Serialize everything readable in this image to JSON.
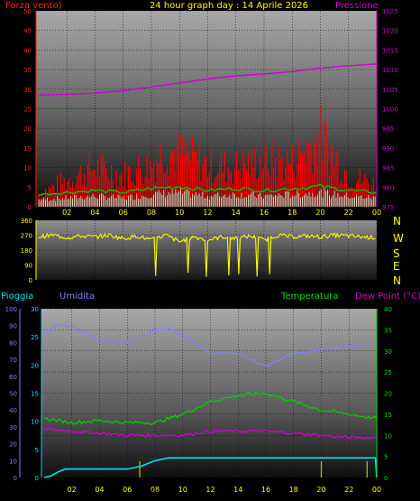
{
  "header": {
    "left_label": "Forza vento)",
    "title": "24 hour graph day : 14 Aprile 2026",
    "right_label": "Pressione"
  },
  "compass": [
    "N",
    "W",
    "S",
    "E",
    "N"
  ],
  "bottom_header": {
    "rain_label": "Pioggia",
    "humidity_label": "Umidita",
    "temperature_label": "Temperatura",
    "dewpoint_label": "Dew Point (°C)"
  },
  "markers": {
    "sunrise": "Sunrise"
  },
  "colors": {
    "wind_speed": "#ff0000",
    "wind_gust": "#ff0000",
    "avg_wind": "#00cc00",
    "pressure": "#d000d0",
    "direction": "#ffff00",
    "humidity": "#8080ff",
    "temperature": "#00cc00",
    "dewpoint": "#d000d0",
    "rain": "#00e0ff",
    "title": "#ffff00"
  },
  "chart_data": [
    {
      "type": "area",
      "x_ticks": [
        "02",
        "04",
        "06",
        "08",
        "10",
        "12",
        "14",
        "16",
        "18",
        "20",
        "22",
        "00"
      ],
      "left_axis": {
        "ticks": [
          0,
          5,
          10,
          15,
          20,
          25,
          30,
          35,
          40,
          45,
          50
        ],
        "ylim": [
          0,
          50
        ]
      },
      "right_axis": {
        "ticks": [
          975,
          980,
          985,
          990,
          995,
          1000,
          1005,
          1010,
          1015,
          1020,
          1025
        ],
        "ylim": [
          975,
          1025
        ]
      },
      "series": [
        {
          "name": "Pressione",
          "axis": "right",
          "hours": [
            0,
            2,
            4,
            6,
            8,
            10,
            12,
            14,
            16,
            18,
            20,
            22,
            24
          ],
          "values": [
            1003.5,
            1003.7,
            1004,
            1004.6,
            1005.6,
            1006.6,
            1007.6,
            1008.4,
            1008.9,
            1009.5,
            1010.4,
            1011,
            1011.4
          ]
        },
        {
          "name": "gust_max",
          "axis": "left",
          "hours": [
            0,
            2,
            4,
            6,
            8,
            9,
            10,
            12,
            14,
            16,
            18,
            19,
            20,
            22,
            24
          ],
          "values": [
            5,
            10,
            15,
            12,
            16,
            22,
            20,
            16,
            15,
            18,
            17,
            22,
            27,
            12,
            8
          ]
        },
        {
          "name": "wind_mean",
          "axis": "left",
          "hours": [
            0,
            2,
            4,
            6,
            8,
            10,
            12,
            14,
            16,
            18,
            20,
            22,
            24
          ],
          "values": [
            2,
            2.5,
            3,
            2.5,
            3.5,
            4,
            3,
            3.5,
            3,
            3.5,
            4,
            3,
            2.5
          ]
        }
      ]
    },
    {
      "type": "scatter",
      "name": "direction",
      "x_ticks": [
        "02",
        "04",
        "06",
        "08",
        "10",
        "12",
        "14",
        "16",
        "18",
        "20",
        "22",
        "00"
      ],
      "y_ticks": [
        0,
        90,
        180,
        270,
        360
      ],
      "ylim": [
        0,
        360
      ],
      "hours": [
        0,
        1,
        2,
        3,
        4,
        5,
        6,
        7,
        8,
        9,
        10,
        11,
        12,
        13,
        14,
        15,
        16,
        17,
        18,
        19,
        20,
        21,
        22,
        23,
        24
      ],
      "values": [
        260,
        270,
        255,
        265,
        260,
        270,
        250,
        265,
        240,
        270,
        230,
        260,
        240,
        260,
        250,
        265,
        240,
        270,
        260,
        265,
        260,
        270,
        265,
        260,
        255
      ]
    },
    {
      "type": "line",
      "x_ticks": [
        "02",
        "04",
        "06",
        "08",
        "10",
        "12",
        "14",
        "16",
        "18",
        "20",
        "22",
        "00"
      ],
      "rain_axis": {
        "ticks": [
          0,
          5,
          10,
          15,
          20,
          25,
          30
        ],
        "ylim": [
          0,
          30
        ]
      },
      "humidity_axis": {
        "ticks": [
          0,
          10,
          20,
          30,
          40,
          50,
          60,
          70,
          80,
          90,
          100
        ],
        "ylim": [
          0,
          100
        ]
      },
      "temperature_axis": {
        "ticks": [
          0,
          5,
          10,
          15,
          20,
          25,
          30,
          35,
          40
        ],
        "ylim": [
          0,
          40
        ]
      },
      "series": [
        {
          "name": "Umidita",
          "axis": "humidity",
          "hours": [
            0,
            1,
            2,
            4,
            6,
            8,
            9,
            10,
            12,
            14,
            16,
            17,
            18,
            20,
            22,
            24
          ],
          "values": [
            85,
            90,
            89,
            82,
            80,
            87,
            88,
            84,
            74,
            73,
            66,
            70,
            74,
            76,
            78,
            79
          ]
        },
        {
          "name": "Temperatura",
          "axis": "temperature",
          "hours": [
            0,
            2,
            4,
            6,
            8,
            10,
            12,
            14,
            16,
            18,
            20,
            22,
            24
          ],
          "values": [
            14,
            13,
            13.5,
            13,
            13,
            15,
            18,
            19.5,
            20,
            18,
            16,
            15,
            14
          ]
        },
        {
          "name": "Dew Point",
          "axis": "temperature",
          "hours": [
            0,
            2,
            4,
            6,
            8,
            10,
            12,
            14,
            16,
            18,
            20,
            22,
            24
          ],
          "values": [
            11.5,
            11,
            10.5,
            10,
            10,
            10,
            11,
            11,
            11,
            10.5,
            10,
            9.5,
            9.5
          ]
        },
        {
          "name": "Pioggia",
          "axis": "rain",
          "hours": [
            0,
            0.5,
            1,
            1.5,
            6,
            7,
            8,
            9,
            23.9,
            24
          ],
          "values": [
            0,
            0.3,
            1,
            1.5,
            1.5,
            2,
            3,
            3.5,
            3.5,
            0
          ]
        }
      ]
    }
  ]
}
